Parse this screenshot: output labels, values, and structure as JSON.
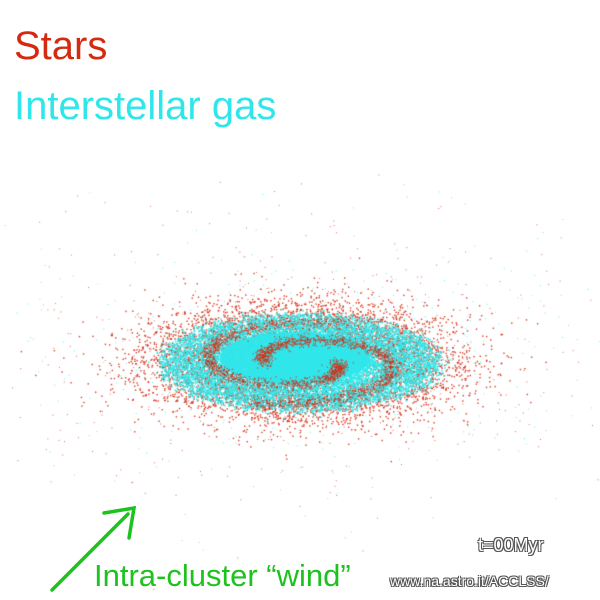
{
  "legend": {
    "stars_label": "Stars",
    "gas_label": "Interstellar gas"
  },
  "annotations": {
    "wind_label": "Intra-cluster “wind”",
    "time_label": "t=00Myr",
    "url": "www.na.astro.it/ACCLSS/"
  },
  "colors": {
    "stars": "#d42a10",
    "gas": "#2fe6ea",
    "wind_arrow": "#1ec21e",
    "background": "#ffffff"
  },
  "icons": {
    "wind_arrow": "arrow-up-right-icon"
  }
}
